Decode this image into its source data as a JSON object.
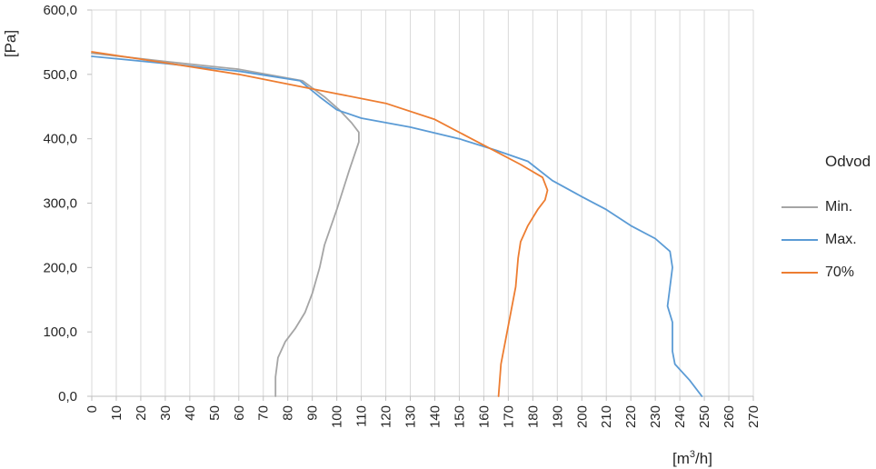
{
  "chart_data": {
    "type": "line",
    "xlabel": "[m3/h]",
    "ylabel": "[Pa]",
    "xlim": [
      0,
      270
    ],
    "ylim": [
      0,
      600
    ],
    "x_ticks": [
      "0",
      "10",
      "20",
      "30",
      "40",
      "50",
      "60",
      "70",
      "80",
      "90",
      "100",
      "110",
      "120",
      "130",
      "140",
      "150",
      "160",
      "170",
      "180",
      "190",
      "200",
      "210",
      "220",
      "230",
      "240",
      "250",
      "260",
      "270"
    ],
    "y_ticks": [
      "0,0",
      "100,0",
      "200,0",
      "300,0",
      "400,0",
      "500,0",
      "600,0"
    ],
    "grid": "vertical",
    "legend_title": "Odvod",
    "legend_position": "right",
    "series": [
      {
        "name": "Min.",
        "color": "#a5a5a5",
        "points": [
          [
            0,
            533
          ],
          [
            30,
            520
          ],
          [
            60,
            508
          ],
          [
            86,
            490
          ],
          [
            95,
            465
          ],
          [
            101,
            445
          ],
          [
            106,
            425
          ],
          [
            109,
            410
          ],
          [
            109,
            395
          ],
          [
            105,
            350
          ],
          [
            100,
            290
          ],
          [
            95,
            235
          ],
          [
            93,
            200
          ],
          [
            90,
            160
          ],
          [
            87,
            130
          ],
          [
            83,
            105
          ],
          [
            79,
            85
          ],
          [
            76,
            60
          ],
          [
            75,
            30
          ],
          [
            75,
            0
          ]
        ]
      },
      {
        "name": "Max.",
        "color": "#5b9bd5",
        "points": [
          [
            0,
            528
          ],
          [
            30,
            517
          ],
          [
            60,
            505
          ],
          [
            85,
            490
          ],
          [
            93,
            465
          ],
          [
            100,
            445
          ],
          [
            110,
            432
          ],
          [
            130,
            418
          ],
          [
            150,
            400
          ],
          [
            165,
            382
          ],
          [
            178,
            365
          ],
          [
            188,
            335
          ],
          [
            200,
            310
          ],
          [
            210,
            290
          ],
          [
            220,
            265
          ],
          [
            230,
            245
          ],
          [
            236,
            225
          ],
          [
            237,
            200
          ],
          [
            236,
            170
          ],
          [
            235,
            140
          ],
          [
            237,
            115
          ],
          [
            237,
            70
          ],
          [
            238,
            50
          ],
          [
            244,
            25
          ],
          [
            249,
            0
          ]
        ]
      },
      {
        "name": "70%",
        "color": "#ed7d31",
        "points": [
          [
            0,
            535
          ],
          [
            30,
            518
          ],
          [
            60,
            500
          ],
          [
            80,
            485
          ],
          [
            100,
            470
          ],
          [
            120,
            455
          ],
          [
            140,
            430
          ],
          [
            155,
            400
          ],
          [
            165,
            380
          ],
          [
            175,
            360
          ],
          [
            184,
            340
          ],
          [
            186,
            320
          ],
          [
            185,
            305
          ],
          [
            182,
            290
          ],
          [
            178,
            265
          ],
          [
            175,
            240
          ],
          [
            174,
            215
          ],
          [
            173,
            170
          ],
          [
            171,
            130
          ],
          [
            169,
            90
          ],
          [
            167,
            50
          ],
          [
            166,
            0
          ]
        ]
      }
    ]
  }
}
